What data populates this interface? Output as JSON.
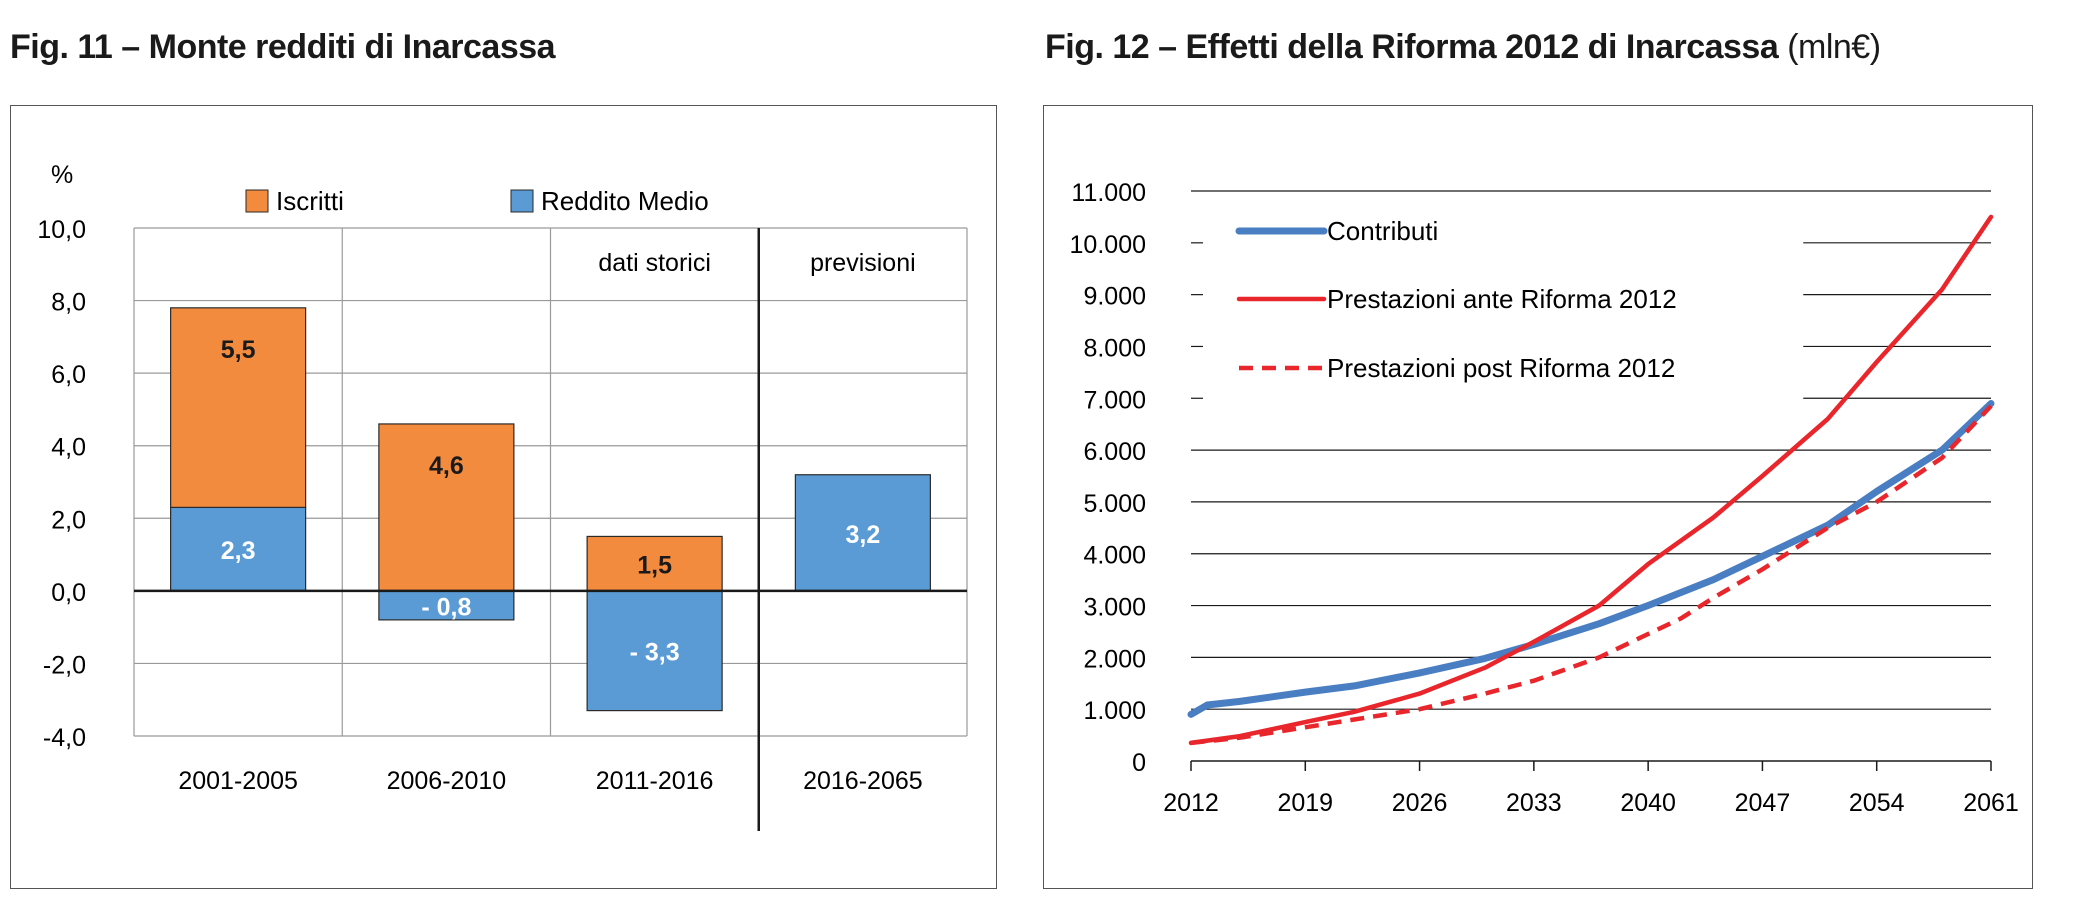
{
  "figures": {
    "fig11": {
      "title": "Fig. 11 – Monte redditi di Inarcassa",
      "unit": ""
    },
    "fig12": {
      "title": "Fig. 12 – Effetti della Riforma 2012 di Inarcassa",
      "unit": "(mln€)"
    }
  },
  "chart_data": [
    {
      "type": "bar",
      "stacked": true,
      "title": "Fig. 11 – Monte redditi di Inarcassa",
      "ylabel": "%",
      "ylim": [
        -4,
        10
      ],
      "y_ticks": [
        "10,0",
        "8,0",
        "6,0",
        "4,0",
        "2,0",
        "0,0",
        "-2,0",
        "-4,0"
      ],
      "categories": [
        "2001-2005",
        "2006-2010",
        "2011-2016",
        "2016-2065"
      ],
      "period_labels": {
        "historical": "dati storici",
        "forecast": "previsioni"
      },
      "series": [
        {
          "name": "Iscritti",
          "color": "#F38B3F",
          "values": [
            5.5,
            4.6,
            1.5,
            0
          ],
          "labels": [
            "5,5",
            "4,6",
            "1,5",
            ""
          ]
        },
        {
          "name": "Reddito Medio",
          "color": "#5B9BD5",
          "values": [
            2.3,
            -0.8,
            -3.3,
            3.2
          ],
          "labels": [
            "2,3",
            "- 0,8",
            "- 3,3",
            "3,2"
          ]
        }
      ],
      "grid": true,
      "legend": "top"
    },
    {
      "type": "line",
      "title": "Fig. 12 – Effetti della Riforma 2012 di Inarcassa",
      "unit": "(mln€)",
      "xlim": [
        2012,
        2061
      ],
      "ylim": [
        0,
        11000
      ],
      "x_ticks": [
        "2012",
        "2019",
        "2026",
        "2033",
        "2040",
        "2047",
        "2054",
        "2061"
      ],
      "y_ticks": [
        "0",
        "1.000",
        "2.000",
        "3.000",
        "4.000",
        "5.000",
        "6.000",
        "7.000",
        "8.000",
        "9.000",
        "10.000",
        "11.000"
      ],
      "series": [
        {
          "name": "Contributi",
          "color": "#4A7EC2",
          "style": "solid",
          "x": [
            2012,
            2013,
            2015,
            2019,
            2022,
            2026,
            2030,
            2033,
            2037,
            2040,
            2044,
            2047,
            2051,
            2054,
            2058,
            2061
          ],
          "y": [
            900,
            1080,
            1150,
            1330,
            1450,
            1700,
            1980,
            2250,
            2650,
            3000,
            3500,
            3950,
            4550,
            5200,
            6000,
            6900
          ]
        },
        {
          "name": "Prestazioni ante Riforma 2012",
          "color": "#E8262B",
          "style": "solid",
          "x": [
            2012,
            2015,
            2019,
            2022,
            2026,
            2030,
            2033,
            2037,
            2040,
            2044,
            2047,
            2051,
            2054,
            2058,
            2061
          ],
          "y": [
            350,
            480,
            750,
            950,
            1300,
            1800,
            2300,
            3000,
            3800,
            4700,
            5500,
            6600,
            7700,
            9100,
            10500
          ]
        },
        {
          "name": "Prestazioni post Riforma 2012",
          "color": "#E8262B",
          "style": "dashed",
          "x": [
            2012,
            2015,
            2019,
            2022,
            2026,
            2030,
            2033,
            2037,
            2040,
            2042,
            2044,
            2047,
            2051,
            2054,
            2058,
            2061
          ],
          "y": [
            350,
            450,
            650,
            800,
            1000,
            1300,
            1550,
            2000,
            2450,
            2750,
            3150,
            3700,
            4500,
            5000,
            5850,
            6850
          ]
        }
      ],
      "grid": true,
      "legend": "top-left"
    }
  ]
}
